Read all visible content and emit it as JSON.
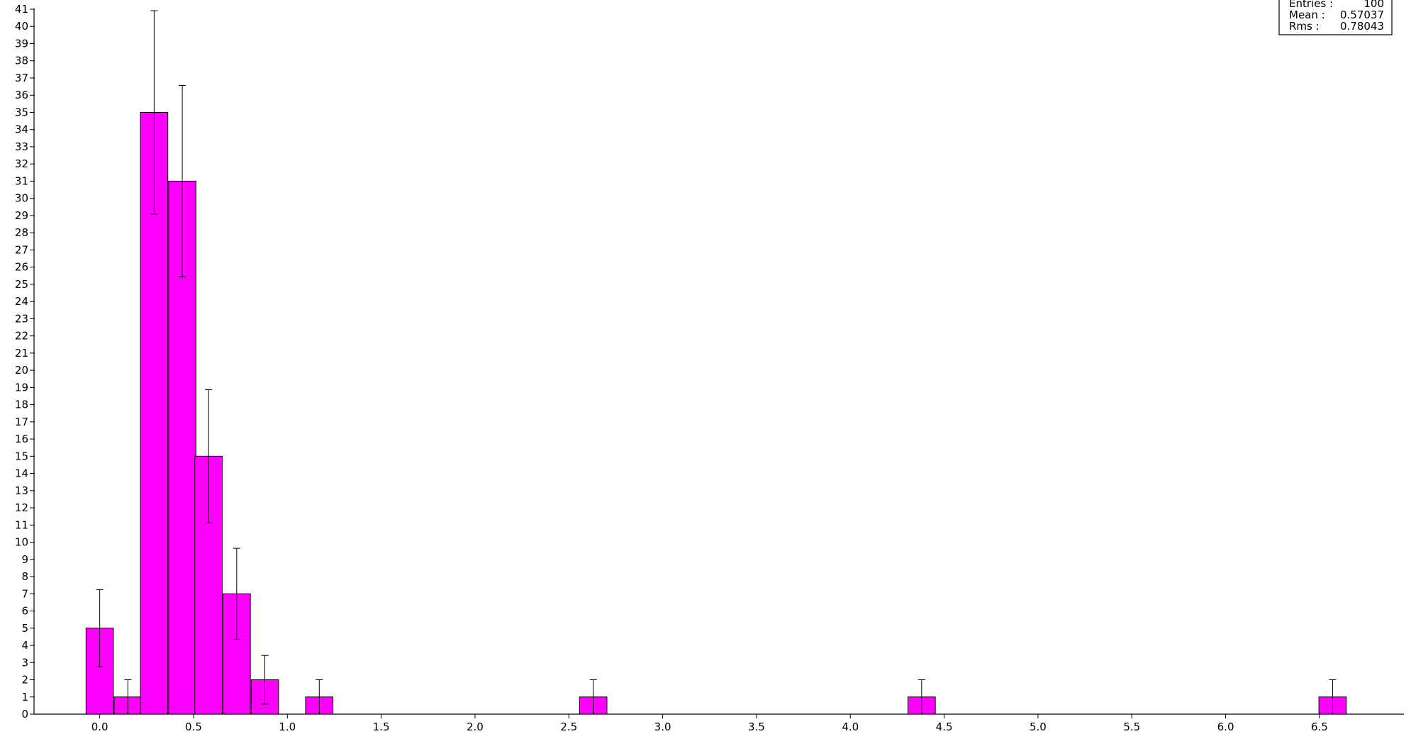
{
  "chart_data": {
    "type": "bar",
    "subtype": "histogram-with-error-bars",
    "bin_width": 0.146,
    "bins": [
      {
        "x": 0.0,
        "value": 5,
        "error": 2.236
      },
      {
        "x": 0.15,
        "value": 1,
        "error": 1.0
      },
      {
        "x": 0.29,
        "value": 35,
        "error": 5.916
      },
      {
        "x": 0.44,
        "value": 31,
        "error": 5.568
      },
      {
        "x": 0.58,
        "value": 15,
        "error": 3.873
      },
      {
        "x": 0.73,
        "value": 7,
        "error": 2.646
      },
      {
        "x": 0.88,
        "value": 2,
        "error": 1.414
      },
      {
        "x": 1.17,
        "value": 1,
        "error": 1.0
      },
      {
        "x": 2.63,
        "value": 1,
        "error": 1.0
      },
      {
        "x": 4.38,
        "value": 1,
        "error": 1.0
      },
      {
        "x": 6.57,
        "value": 1,
        "error": 1.0
      }
    ],
    "xlim": [
      -0.35,
      6.95
    ],
    "ylim": [
      0,
      41
    ],
    "x_ticks": [
      "0.0",
      "0.5",
      "1.0",
      "1.5",
      "2.0",
      "2.5",
      "3.0",
      "3.5",
      "4.0",
      "4.5",
      "5.0",
      "5.5",
      "6.0",
      "6.5"
    ],
    "y_ticks": [
      "0",
      "1",
      "2",
      "3",
      "4",
      "5",
      "6",
      "7",
      "8",
      "9",
      "10",
      "11",
      "12",
      "13",
      "14",
      "15",
      "16",
      "17",
      "18",
      "19",
      "20",
      "21",
      "22",
      "23",
      "24",
      "25",
      "26",
      "27",
      "28",
      "29",
      "30",
      "31",
      "32",
      "33",
      "34",
      "35",
      "36",
      "37",
      "38",
      "39",
      "40",
      "41"
    ],
    "bar_color": "#ff00ff",
    "grid": false,
    "legend_position": "top-right",
    "stats": {
      "entries_label": "Entries :",
      "entries_value": "100",
      "mean_label": "Mean :",
      "mean_value": "0.57037",
      "rms_label": "Rms :",
      "rms_value": "0.78043"
    }
  }
}
